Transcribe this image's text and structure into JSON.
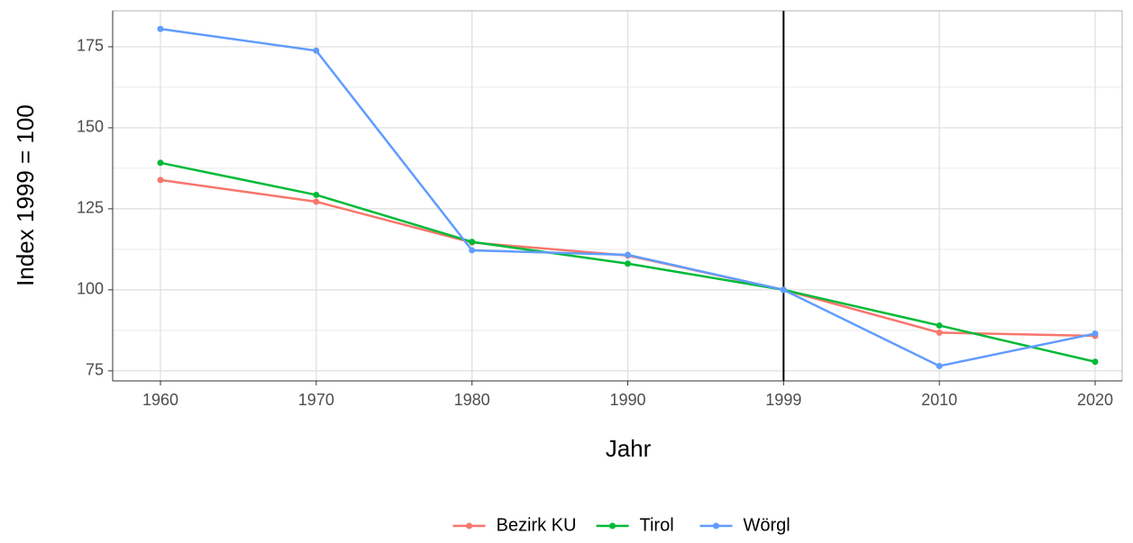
{
  "chart_data": {
    "type": "line",
    "x_label": "Jahr",
    "y_label": "Index 1999 = 100",
    "categories": [
      "1960",
      "1970",
      "1980",
      "1990",
      "1999",
      "2010",
      "2020"
    ],
    "series": [
      {
        "name": "Bezirk KU",
        "color": "#F8766D",
        "values": [
          133.9,
          127.2,
          114.6,
          110.6,
          100,
          86.8,
          85.8
        ]
      },
      {
        "name": "Tirol",
        "color": "#00BA38",
        "values": [
          139.2,
          129.3,
          114.8,
          108.1,
          100,
          89,
          77.8
        ]
      },
      {
        "name": "Wörgl",
        "color": "#619CFF",
        "values": [
          180.5,
          173.8,
          112.2,
          110.8,
          100,
          76.5,
          86.5
        ]
      }
    ],
    "ylim": [
      71.9,
      186.1
    ],
    "yticks": [
      75,
      100,
      125,
      150,
      175
    ],
    "grid": true,
    "vline": "1999",
    "legend": "bottom"
  }
}
